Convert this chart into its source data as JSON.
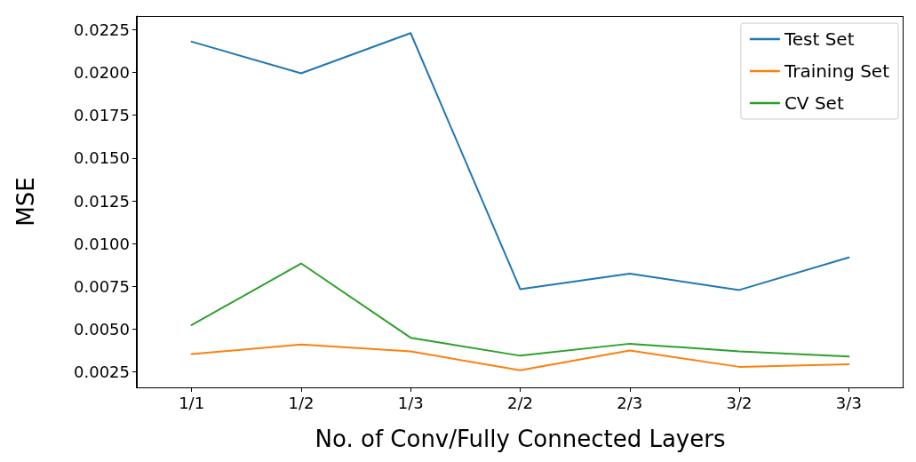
{
  "chart_data": {
    "type": "line",
    "xlabel": "No. of Conv/Fully Connected Layers",
    "ylabel": "MSE",
    "categories": [
      "1/1",
      "1/2",
      "1/3",
      "2/2",
      "2/3",
      "3/2",
      "3/3"
    ],
    "series": [
      {
        "name": "Test Set",
        "color": "#1f77b4",
        "values": [
          0.0218,
          0.01995,
          0.0223,
          0.00734,
          0.00824,
          0.00729,
          0.00919
        ]
      },
      {
        "name": "Training Set",
        "color": "#ff7f0e",
        "values": [
          0.00355,
          0.0041,
          0.0037,
          0.0026,
          0.00375,
          0.0028,
          0.00295
        ]
      },
      {
        "name": "CV Set",
        "color": "#2ca02c",
        "values": [
          0.00524,
          0.00884,
          0.0045,
          0.00345,
          0.00415,
          0.0037,
          0.0034
        ]
      }
    ],
    "ylim": [
      0.0016,
      0.0233
    ],
    "yticks": [
      {
        "value": 0.0025,
        "label": "0.0025"
      },
      {
        "value": 0.005,
        "label": "0.0050"
      },
      {
        "value": 0.0075,
        "label": "0.0075"
      },
      {
        "value": 0.01,
        "label": "0.0100"
      },
      {
        "value": 0.0125,
        "label": "0.0125"
      },
      {
        "value": 0.015,
        "label": "0.0150"
      },
      {
        "value": 0.0175,
        "label": "0.0175"
      },
      {
        "value": 0.02,
        "label": "0.0200"
      },
      {
        "value": 0.0225,
        "label": "0.0225"
      }
    ],
    "grid": false,
    "legend": "top right",
    "marker": "none",
    "line_style": "solid"
  }
}
